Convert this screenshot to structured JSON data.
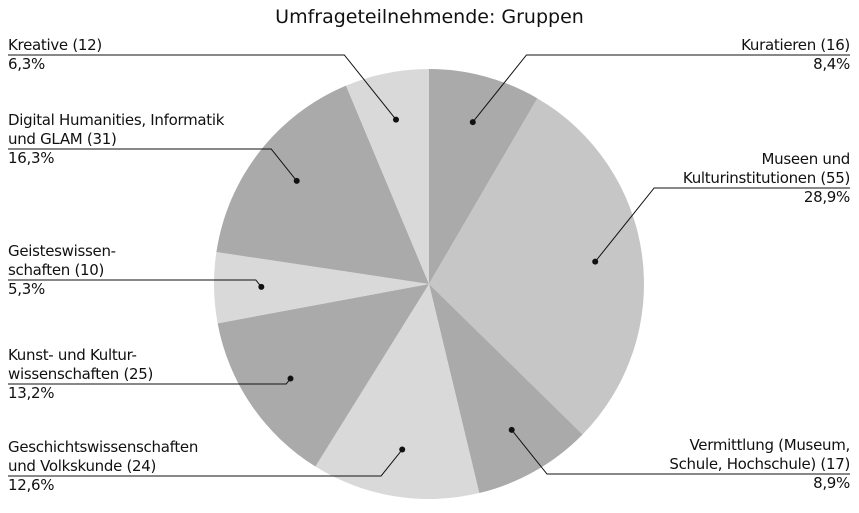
{
  "chart_data": {
    "type": "pie",
    "title": "Umfrageteilnehmende: Gruppen",
    "categories": [
      "Kuratieren (16)",
      "Museen und\nKulturinstitutionen (55)",
      "Vermittlung (Museum,\nSchule, Hochschule) (17)",
      "Geschichtswissenschaften\nund Volkskunde (24)",
      "Kunst- und Kultur-\nwissenschaften (25)",
      "Geisteswissen-\nschaften (10)",
      "Digital Humanities, Informatik\nund GLAM (31)",
      "Kreative (12)"
    ],
    "values": [
      8.4,
      28.9,
      8.9,
      12.6,
      13.2,
      5.3,
      16.3,
      6.3
    ],
    "value_labels": [
      "8,4%",
      "28,9%",
      "8,9%",
      "12,6%",
      "13,2%",
      "5,3%",
      "16,3%",
      "6,3%"
    ],
    "colors": [
      "#aaaaaa",
      "#c6c6c6",
      "#aaaaaa",
      "#d9d9d9",
      "#aaaaaa",
      "#d9d9d9",
      "#aaaaaa",
      "#d9d9d9"
    ]
  }
}
